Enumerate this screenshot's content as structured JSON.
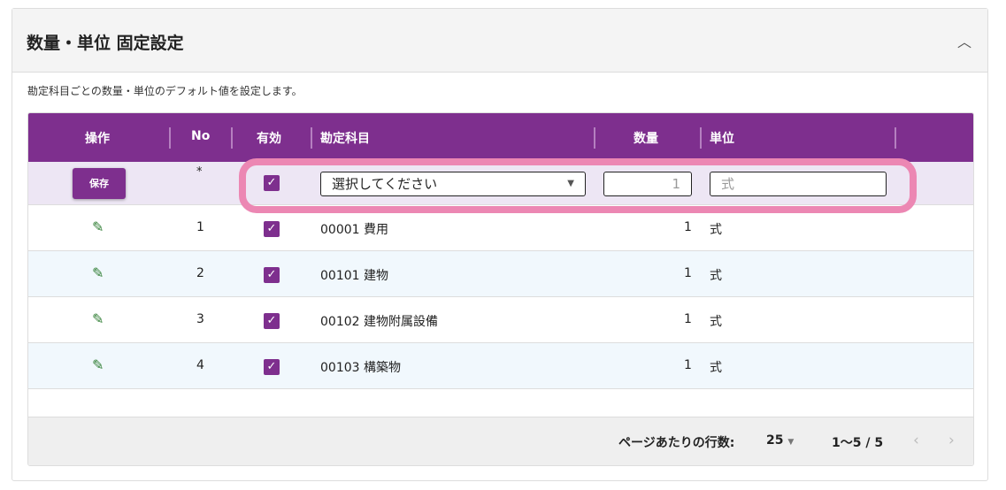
{
  "panel": {
    "title": "数量・単位 固定設定",
    "collapse_icon": "chevron-up-icon",
    "description": "勘定科目ごとの数量・単位のデフォルト値を設定します。"
  },
  "table": {
    "columns": [
      "操作",
      "No",
      "有効",
      "勘定科目",
      "数量",
      "単位"
    ],
    "new_row": {
      "save_label": "保存",
      "no": "*",
      "enabled": true,
      "account_placeholder": "選択してください",
      "quantity_placeholder": "1",
      "unit_placeholder": "式"
    },
    "rows": [
      {
        "no": "1",
        "enabled": true,
        "account": "00001 費用",
        "quantity": "1",
        "unit": "式"
      },
      {
        "no": "2",
        "enabled": true,
        "account": "00101 建物",
        "quantity": "1",
        "unit": "式"
      },
      {
        "no": "3",
        "enabled": true,
        "account": "00102 建物附属設備",
        "quantity": "1",
        "unit": "式"
      },
      {
        "no": "4",
        "enabled": true,
        "account": "00103 構築物",
        "quantity": "1",
        "unit": "式"
      }
    ]
  },
  "pagination": {
    "rows_per_page_label": "ページあたりの行数:",
    "rows_per_page": "25",
    "range": "1〜5 / 5"
  },
  "colors": {
    "header": "#7e2f8e",
    "highlight": "#ec87b3",
    "edit_icon": "#2e7d32",
    "alt_row": "#f1f8fd"
  }
}
